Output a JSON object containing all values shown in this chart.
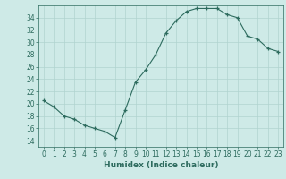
{
  "x": [
    0,
    1,
    2,
    3,
    4,
    5,
    6,
    7,
    8,
    9,
    10,
    11,
    12,
    13,
    14,
    15,
    16,
    17,
    18,
    19,
    20,
    21,
    22,
    23
  ],
  "y": [
    20.5,
    19.5,
    18.0,
    17.5,
    16.5,
    16.0,
    15.5,
    14.5,
    19.0,
    23.5,
    25.5,
    28.0,
    31.5,
    33.5,
    35.0,
    35.5,
    35.5,
    35.5,
    34.5,
    34.0,
    31.0,
    30.5,
    29.0,
    28.5
  ],
  "xlabel": "Humidex (Indice chaleur)",
  "xlim": [
    -0.5,
    23.5
  ],
  "ylim": [
    13,
    36
  ],
  "yticks": [
    14,
    16,
    18,
    20,
    22,
    24,
    26,
    28,
    30,
    32,
    34
  ],
  "xticks": [
    0,
    1,
    2,
    3,
    4,
    5,
    6,
    7,
    8,
    9,
    10,
    11,
    12,
    13,
    14,
    15,
    16,
    17,
    18,
    19,
    20,
    21,
    22,
    23
  ],
  "line_color": "#2d6b5e",
  "marker": "+",
  "bg_color": "#ceeae7",
  "grid_color": "#b0d4d0",
  "label_color": "#2d6b5e",
  "xlabel_fontsize": 6.5,
  "tick_fontsize": 5.5
}
